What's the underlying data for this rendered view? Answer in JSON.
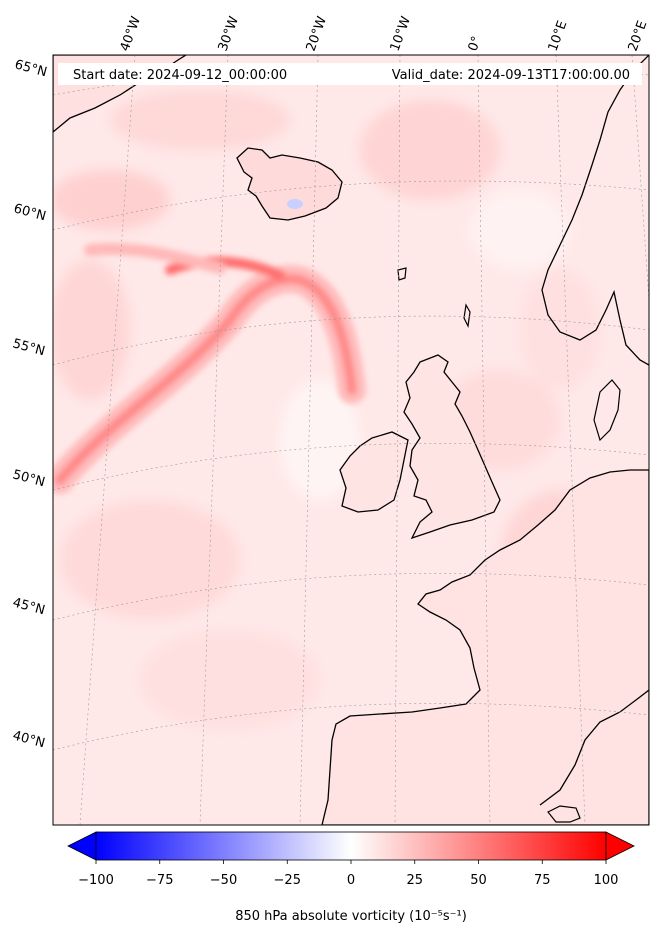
{
  "header": {
    "start_date": "Start date: 2024-09-12_00:00:00",
    "valid_date": "Valid_date: 2024-09-13T17:00:00.00"
  },
  "longitude_labels": [
    "40°W",
    "30°W",
    "20°W",
    "10°W",
    "0°",
    "10°E",
    "20°E"
  ],
  "latitude_labels": [
    "65°N",
    "60°N",
    "55°N",
    "50°N",
    "45°N",
    "40°N"
  ],
  "colorbar": {
    "ticks": [
      "−100",
      "−75",
      "−50",
      "−25",
      "0",
      "25",
      "50",
      "75",
      "100"
    ],
    "label": "850 hPa absolute vorticity (10⁻⁵s⁻¹)",
    "min": -100,
    "max": 100,
    "low_color": "#0000ff",
    "mid_color": "#ffffff",
    "high_color": "#ff0000",
    "extend": "both"
  },
  "map": {
    "field": "850 hPa absolute vorticity",
    "background_color": "#ffe6e6",
    "coastline_color": "#000000",
    "gridline_color": "#999999"
  }
}
